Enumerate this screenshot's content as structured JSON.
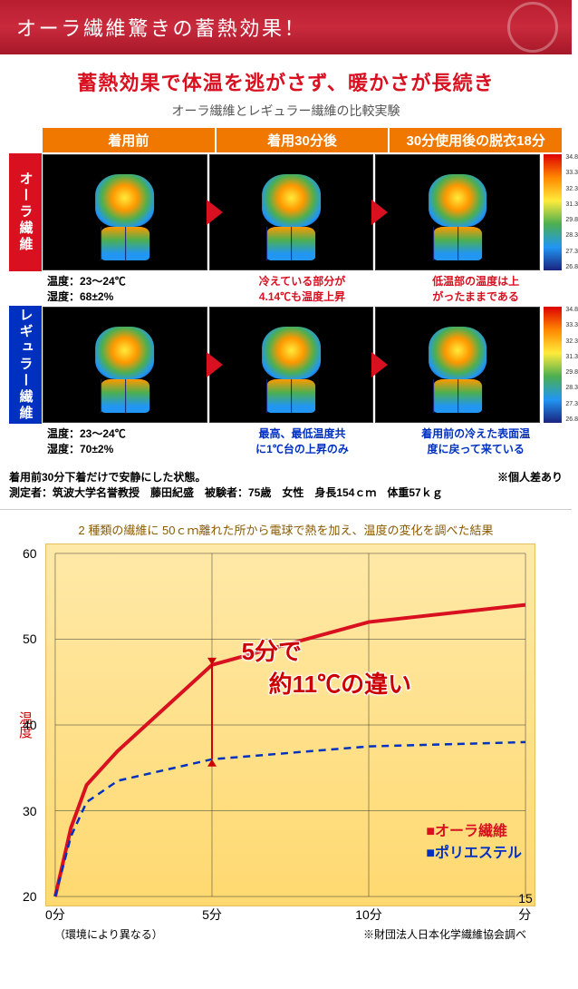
{
  "header": {
    "title": "オーラ繊維驚きの蓄熱効果！"
  },
  "subhead": {
    "red": "蓄熱効果で体温を逃がさず、暖かさが長続き",
    "gray": "オーラ繊維とレギュラー繊維の比較実験"
  },
  "cols": [
    "着用前",
    "着用30分後",
    "30分使用後の脱衣18分"
  ],
  "rows": [
    {
      "label": "オーラ繊維",
      "color": "red",
      "left": "温度：23〜24℃\n湿度：68±2%",
      "mid": "冷えている部分が\n4.14℃も温度上昇",
      "right": "低温部の温度は上\nがったままである"
    },
    {
      "label": "レギュラー繊維",
      "color": "blue",
      "left": "温度：23〜24℃\n湿度：70±2%",
      "mid": "最高、最低温度共\nに1℃台の上昇のみ",
      "right": "着用前の冷えた表面温\n度に戻って来ている"
    }
  ],
  "scale_ticks": [
    "34.8",
    "33.3",
    "32.3",
    "31.3",
    "29.8",
    "28.3",
    "27.3",
    "26.8"
  ],
  "notes": {
    "l1": "着用前30分下着だけで安静にした状態。",
    "l2": "測定者：筑波大学名誉教授　藤田紀盛　被験者：75歳　女性　身長154ｃｍ　体重57ｋｇ",
    "right": "※個人差あり"
  },
  "chart": {
    "type": "line",
    "title": "2 種類の繊維に 50ｃｍ離れた所から電球で熱を加え、温度の変化を調べた結果",
    "ylabel": "温度",
    "ylim": [
      20,
      60
    ],
    "yticks": [
      20,
      30,
      40,
      50,
      60
    ],
    "xlim": [
      0,
      15
    ],
    "xticks": [
      0,
      5,
      10,
      15
    ],
    "xtick_labels": [
      "0分",
      "5分",
      "10分",
      "15分"
    ],
    "series": [
      {
        "name": "オーラ繊維",
        "color": "#d81020",
        "dash": false,
        "width": 4,
        "points": [
          [
            0,
            20
          ],
          [
            0.5,
            28
          ],
          [
            1,
            33
          ],
          [
            2,
            37
          ],
          [
            5,
            47
          ],
          [
            10,
            52
          ],
          [
            15,
            54
          ]
        ]
      },
      {
        "name": "ポリエステル",
        "color": "#0030c0",
        "dash": true,
        "width": 2.5,
        "points": [
          [
            0,
            20
          ],
          [
            0.5,
            27
          ],
          [
            1,
            31
          ],
          [
            2,
            33.5
          ],
          [
            5,
            36
          ],
          [
            10,
            37.5
          ],
          [
            15,
            38
          ]
        ]
      }
    ],
    "callout": {
      "line1": "5分で",
      "line2": "約11℃の違い"
    },
    "legend": [
      {
        "marker": "■",
        "label": "オーラ繊維",
        "color": "#d81020"
      },
      {
        "marker": "■",
        "label": "ポリエステル",
        "color": "#0030c0"
      }
    ],
    "foot_left": "（環境により異なる）",
    "foot_right": "※財団法人日本化学繊維協会調べ",
    "background_color": "#ffe9a8",
    "grid_color": "#333333"
  }
}
